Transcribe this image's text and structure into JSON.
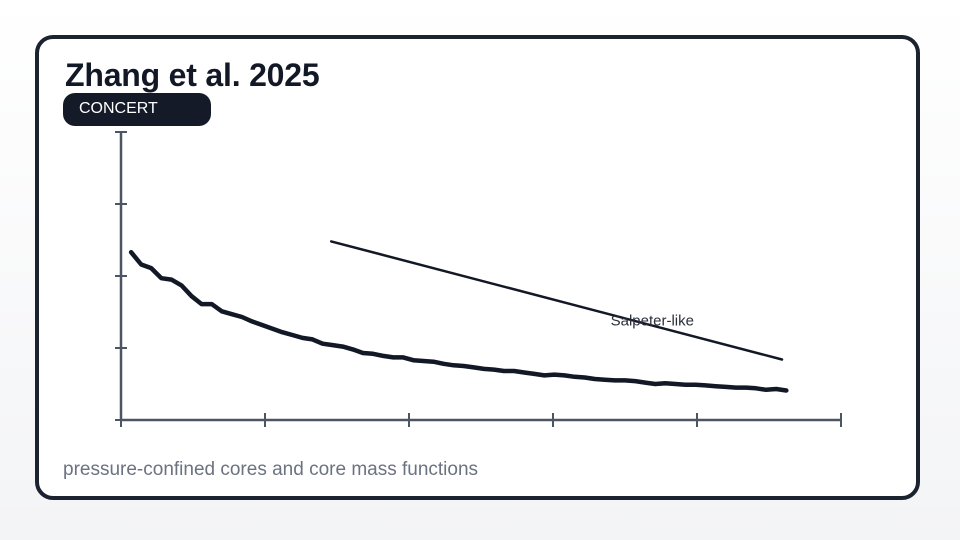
{
  "card": {
    "title": "Zhang et al. 2025",
    "badge": "CONCERT",
    "subtitle": "pressure-confined cores and core mass functions"
  },
  "colors": {
    "frame": "#1c2230",
    "badge_bg": "#141a28",
    "series": "#121826",
    "axis": "#4b5563",
    "subtitle": "#6b7280"
  },
  "chart_data": {
    "type": "line",
    "title": "",
    "xlabel": "",
    "ylabel": "",
    "xlim": [
      0,
      5
    ],
    "ylim": [
      0,
      4
    ],
    "x_ticks": [
      0,
      1,
      2,
      3,
      4,
      5
    ],
    "y_ticks": [
      0,
      1,
      2,
      3,
      4
    ],
    "tick_labels_shown": false,
    "grid": false,
    "series": [
      {
        "name": "",
        "style": "thick",
        "x": [
          0.07,
          0.14,
          0.21,
          0.28,
          0.35,
          0.42,
          0.49,
          0.56,
          0.63,
          0.7,
          0.77,
          0.84,
          0.91,
          0.98,
          1.05,
          1.12,
          1.19,
          1.26,
          1.33,
          1.4,
          1.47,
          1.54,
          1.61,
          1.68,
          1.75,
          1.82,
          1.89,
          1.96,
          2.03,
          2.1,
          2.17,
          2.24,
          2.31,
          2.38,
          2.45,
          2.52,
          2.59,
          2.66,
          2.73,
          2.8,
          2.87,
          2.94,
          3.01,
          3.08,
          3.15,
          3.22,
          3.29,
          3.36,
          3.43,
          3.5,
          3.57,
          3.64,
          3.71,
          3.78,
          3.85,
          3.92,
          3.99,
          4.06,
          4.13,
          4.2,
          4.27,
          4.34,
          4.41,
          4.48,
          4.55,
          4.62
        ],
        "y": [
          2.33,
          2.16,
          2.11,
          1.97,
          1.95,
          1.87,
          1.72,
          1.61,
          1.61,
          1.51,
          1.47,
          1.43,
          1.37,
          1.32,
          1.27,
          1.22,
          1.18,
          1.14,
          1.12,
          1.06,
          1.04,
          1.02,
          0.98,
          0.93,
          0.92,
          0.89,
          0.87,
          0.87,
          0.83,
          0.82,
          0.81,
          0.78,
          0.76,
          0.75,
          0.73,
          0.71,
          0.7,
          0.68,
          0.68,
          0.66,
          0.64,
          0.62,
          0.63,
          0.62,
          0.6,
          0.59,
          0.57,
          0.56,
          0.55,
          0.55,
          0.54,
          0.52,
          0.5,
          0.51,
          0.5,
          0.49,
          0.49,
          0.48,
          0.47,
          0.46,
          0.45,
          0.45,
          0.44,
          0.42,
          0.43,
          0.41
        ]
      },
      {
        "name": "Salpeter-like",
        "style": "reference",
        "x": [
          1.46,
          4.59
        ],
        "y": [
          2.48,
          0.84
        ]
      }
    ],
    "annotations": [
      {
        "text": "Salpeter-like",
        "x": 3.4,
        "y": 1.31,
        "series": "Salpeter-like"
      }
    ]
  }
}
